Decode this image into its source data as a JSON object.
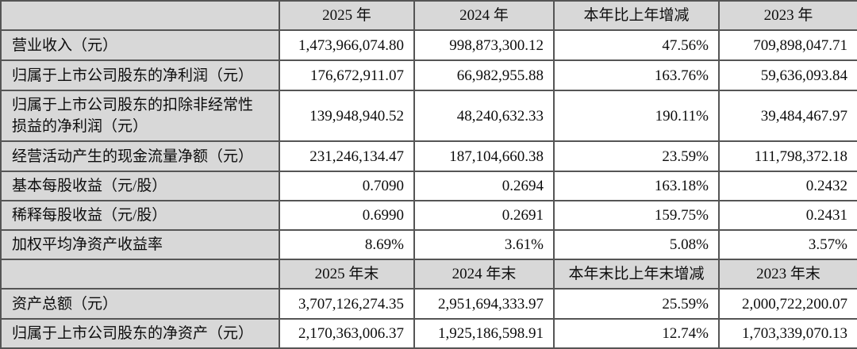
{
  "colors": {
    "header_bg": "#d8d8d8",
    "label_bg": "#d8d8d8",
    "cell_bg": "#ffffff",
    "border": "#555555",
    "text": "#0d0d0d",
    "page_bg": "#ffffff"
  },
  "table": {
    "header_row_1": [
      "",
      "2025 年",
      "2024 年",
      "本年比上年增减",
      "2023 年"
    ],
    "rows_period": [
      {
        "label": "营业收入（元）",
        "values": [
          "1,473,966,074.80",
          "998,873,300.12",
          "47.56%",
          "709,898,047.71"
        ]
      },
      {
        "label": "归属于上市公司股东的净利润（元）",
        "values": [
          "176,672,911.07",
          "66,982,955.88",
          "163.76%",
          "59,636,093.84"
        ]
      },
      {
        "label": "归属于上市公司股东的扣除非经常性损益的净利润（元）",
        "values": [
          "139,948,940.52",
          "48,240,632.33",
          "190.11%",
          "39,484,467.97"
        ]
      },
      {
        "label": "经营活动产生的现金流量净额（元）",
        "values": [
          "231,246,134.47",
          "187,104,660.38",
          "23.59%",
          "111,798,372.18"
        ]
      },
      {
        "label": "基本每股收益（元/股）",
        "values": [
          "0.7090",
          "0.2694",
          "163.18%",
          "0.2432"
        ]
      },
      {
        "label": "稀释每股收益（元/股）",
        "values": [
          "0.6990",
          "0.2691",
          "159.75%",
          "0.2431"
        ]
      },
      {
        "label": "加权平均净资产收益率",
        "values": [
          "8.69%",
          "3.61%",
          "5.08%",
          "3.57%"
        ]
      }
    ],
    "header_row_2": [
      "",
      "2025 年末",
      "2024 年末",
      "本年末比上年末增减",
      "2023 年末"
    ],
    "rows_end": [
      {
        "label": "资产总额（元）",
        "values": [
          "3,707,126,274.35",
          "2,951,694,333.97",
          "25.59%",
          "2,000,722,200.07"
        ]
      },
      {
        "label": "归属于上市公司股东的净资产（元）",
        "values": [
          "2,170,363,006.37",
          "1,925,186,598.91",
          "12.74%",
          "1,703,339,070.13"
        ]
      }
    ]
  }
}
